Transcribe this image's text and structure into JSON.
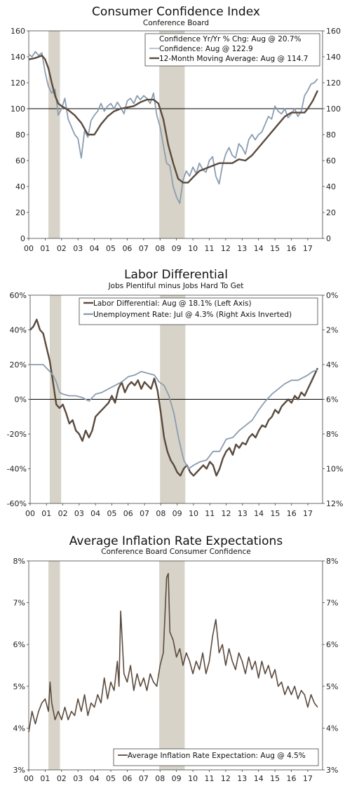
{
  "chart_data": [
    {
      "type": "line",
      "title": "Consumer Confidence Index",
      "subtitle": "Conference Board",
      "ylim": [
        0,
        160
      ],
      "y_ticks": [
        "0",
        "20",
        "40",
        "60",
        "80",
        "100",
        "120",
        "140",
        "160"
      ],
      "y2_ticks": [
        "0",
        "20",
        "40",
        "60",
        "80",
        "100",
        "120",
        "140",
        "160"
      ],
      "x_ticks": [
        "00",
        "01",
        "02",
        "03",
        "04",
        "05",
        "06",
        "07",
        "08",
        "09",
        "10",
        "11",
        "12",
        "13",
        "14",
        "15",
        "16",
        "17"
      ],
      "x_range": [
        2000,
        2017.9
      ],
      "reference_line": 100,
      "recessions": [
        [
          2001.2,
          2001.9
        ],
        [
          2007.95,
          2009.5
        ]
      ],
      "legend_placement": "top-right",
      "legend": [
        "Confidence Yr/Yr % Chg: Aug @ 20.7%",
        "Confidence: Aug @ 122.9",
        "12-Month Moving Average: Aug @ 114.7"
      ],
      "series": [
        {
          "name": "Confidence: Aug @ 122.9",
          "color": "#8a9db0",
          "x": [
            2000.0,
            2000.2,
            2000.4,
            2000.6,
            2000.8,
            2001.0,
            2001.2,
            2001.4,
            2001.6,
            2001.8,
            2002.0,
            2002.2,
            2002.4,
            2002.6,
            2002.8,
            2003.0,
            2003.2,
            2003.4,
            2003.6,
            2003.8,
            2004.0,
            2004.2,
            2004.4,
            2004.6,
            2004.8,
            2005.0,
            2005.2,
            2005.4,
            2005.6,
            2005.8,
            2006.0,
            2006.2,
            2006.4,
            2006.6,
            2006.8,
            2007.0,
            2007.2,
            2007.4,
            2007.6,
            2007.8,
            2008.0,
            2008.2,
            2008.4,
            2008.6,
            2008.8,
            2009.0,
            2009.2,
            2009.4,
            2009.6,
            2009.8,
            2010.0,
            2010.2,
            2010.4,
            2010.6,
            2010.8,
            2011.0,
            2011.2,
            2011.4,
            2011.6,
            2011.8,
            2012.0,
            2012.2,
            2012.4,
            2012.6,
            2012.8,
            2013.0,
            2013.2,
            2013.4,
            2013.6,
            2013.8,
            2014.0,
            2014.2,
            2014.4,
            2014.6,
            2014.8,
            2015.0,
            2015.2,
            2015.4,
            2015.6,
            2015.8,
            2016.0,
            2016.2,
            2016.4,
            2016.6,
            2016.8,
            2017.0,
            2017.2,
            2017.4,
            2017.6
          ],
          "values": [
            142,
            140,
            144,
            141,
            143,
            128,
            117,
            112,
            115,
            95,
            100,
            108,
            92,
            86,
            80,
            77,
            62,
            83,
            78,
            91,
            95,
            98,
            104,
            98,
            102,
            104,
            100,
            105,
            101,
            96,
            106,
            108,
            104,
            110,
            107,
            110,
            108,
            104,
            112,
            95,
            86,
            72,
            58,
            56,
            40,
            32,
            27,
            45,
            52,
            48,
            55,
            50,
            58,
            53,
            51,
            60,
            63,
            48,
            42,
            56,
            65,
            70,
            64,
            62,
            73,
            70,
            65,
            76,
            80,
            76,
            80,
            82,
            88,
            94,
            92,
            102,
            98,
            96,
            100,
            93,
            96,
            100,
            94,
            98,
            110,
            114,
            119,
            120,
            123
          ]
        },
        {
          "name": "12-Month Moving Average: Aug @ 114.7",
          "color": "#5a4a3e",
          "x": [
            2000.0,
            2000.4,
            2000.8,
            2001.0,
            2001.2,
            2001.4,
            2001.6,
            2001.8,
            2002.0,
            2002.4,
            2002.8,
            2003.2,
            2003.6,
            2004.0,
            2004.4,
            2004.8,
            2005.2,
            2005.6,
            2006.0,
            2006.4,
            2006.8,
            2007.2,
            2007.6,
            2007.9,
            2008.2,
            2008.5,
            2008.8,
            2009.1,
            2009.4,
            2009.7,
            2010.0,
            2010.4,
            2010.8,
            2011.2,
            2011.6,
            2012.0,
            2012.4,
            2012.8,
            2013.2,
            2013.6,
            2014.0,
            2014.4,
            2014.8,
            2015.2,
            2015.6,
            2016.0,
            2016.4,
            2016.8,
            2017.0,
            2017.3,
            2017.6
          ],
          "values": [
            138,
            139,
            141,
            138,
            131,
            120,
            110,
            104,
            102,
            99,
            95,
            89,
            80,
            80,
            88,
            94,
            98,
            100,
            101,
            102,
            105,
            107,
            107,
            104,
            92,
            72,
            58,
            46,
            43,
            43,
            47,
            52,
            54,
            56,
            58,
            58,
            58,
            61,
            60,
            64,
            70,
            76,
            82,
            88,
            94,
            97,
            97,
            97,
            100,
            106,
            114
          ]
        }
      ]
    },
    {
      "type": "line",
      "title": "Labor Differential",
      "subtitle": "Jobs Plentiful minus Jobs Hard To Get",
      "ylim": [
        -60,
        60
      ],
      "y_ticks": [
        "-60%",
        "-40%",
        "-20%",
        "0%",
        "20%",
        "40%",
        "60%"
      ],
      "y2_ticks": [
        "12%",
        "10%",
        "8%",
        "6%",
        "4%",
        "2%",
        "0%"
      ],
      "y2lim_inverted": [
        12,
        0
      ],
      "x_ticks": [
        "00",
        "01",
        "02",
        "03",
        "04",
        "05",
        "06",
        "07",
        "08",
        "09",
        "10",
        "11",
        "12",
        "13",
        "14",
        "15",
        "16",
        "17"
      ],
      "x_range": [
        2000,
        2017.9
      ],
      "reference_line": 0,
      "recessions": [
        [
          2001.2,
          2001.9
        ],
        [
          2007.95,
          2009.5
        ]
      ],
      "legend_placement": "top-right",
      "legend": [
        "Labor Differential: Aug @ 18.1% (Left Axis)",
        "Unemployment Rate: Jul @ 4.3% (Right Axis Inverted)"
      ],
      "series": [
        {
          "name": "Labor Differential: Aug @ 18.1% (Left Axis)",
          "axis": "left",
          "color": "#5a4a3e",
          "x": [
            2000.0,
            2000.2,
            2000.4,
            2000.6,
            2000.8,
            2001.0,
            2001.2,
            2001.4,
            2001.6,
            2001.8,
            2002.0,
            2002.2,
            2002.4,
            2002.6,
            2002.8,
            2003.0,
            2003.2,
            2003.4,
            2003.6,
            2003.8,
            2004.0,
            2004.2,
            2004.4,
            2004.6,
            2004.8,
            2005.0,
            2005.2,
            2005.4,
            2005.6,
            2005.8,
            2006.0,
            2006.2,
            2006.4,
            2006.6,
            2006.8,
            2007.0,
            2007.2,
            2007.4,
            2007.6,
            2007.8,
            2008.0,
            2008.2,
            2008.4,
            2008.6,
            2008.8,
            2009.0,
            2009.2,
            2009.4,
            2009.6,
            2009.8,
            2010.0,
            2010.2,
            2010.4,
            2010.6,
            2010.8,
            2011.0,
            2011.2,
            2011.4,
            2011.6,
            2011.8,
            2012.0,
            2012.2,
            2012.4,
            2012.6,
            2012.8,
            2013.0,
            2013.2,
            2013.4,
            2013.6,
            2013.8,
            2014.0,
            2014.2,
            2014.4,
            2014.6,
            2014.8,
            2015.0,
            2015.2,
            2015.4,
            2015.6,
            2015.8,
            2016.0,
            2016.2,
            2016.4,
            2016.6,
            2016.8,
            2017.0,
            2017.2,
            2017.4,
            2017.6
          ],
          "values": [
            40,
            42,
            46,
            40,
            38,
            30,
            22,
            10,
            -3,
            -5,
            -3,
            -8,
            -14,
            -12,
            -18,
            -20,
            -24,
            -18,
            -22,
            -18,
            -10,
            -8,
            -6,
            -4,
            -2,
            2,
            -2,
            6,
            10,
            4,
            8,
            10,
            8,
            11,
            6,
            10,
            8,
            6,
            12,
            5,
            -8,
            -22,
            -30,
            -35,
            -38,
            -42,
            -44,
            -40,
            -38,
            -42,
            -44,
            -42,
            -40,
            -38,
            -40,
            -36,
            -38,
            -44,
            -40,
            -34,
            -30,
            -28,
            -32,
            -26,
            -28,
            -25,
            -26,
            -22,
            -20,
            -22,
            -18,
            -15,
            -16,
            -12,
            -10,
            -6,
            -8,
            -4,
            -2,
            0,
            -2,
            2,
            0,
            4,
            2,
            6,
            10,
            14,
            18
          ]
        },
        {
          "name": "Unemployment Rate: Jul @ 4.3% (Right Axis Inverted)",
          "axis": "right",
          "color": "#8a9db0",
          "x": [
            2000.0,
            2000.4,
            2000.8,
            2001.0,
            2001.2,
            2001.4,
            2001.6,
            2001.8,
            2002.0,
            2002.4,
            2002.8,
            2003.2,
            2003.6,
            2004.0,
            2004.4,
            2004.8,
            2005.2,
            2005.6,
            2006.0,
            2006.4,
            2006.8,
            2007.2,
            2007.6,
            2007.9,
            2008.2,
            2008.5,
            2008.8,
            2009.1,
            2009.4,
            2009.7,
            2010.0,
            2010.4,
            2010.8,
            2011.2,
            2011.6,
            2012.0,
            2012.4,
            2012.8,
            2013.2,
            2013.6,
            2014.0,
            2014.4,
            2014.8,
            2015.2,
            2015.6,
            2016.0,
            2016.4,
            2016.8,
            2017.0,
            2017.3,
            2017.6
          ],
          "values": [
            4.0,
            4.0,
            4.0,
            4.2,
            4.4,
            4.6,
            5.0,
            5.6,
            5.7,
            5.8,
            5.8,
            5.9,
            6.1,
            5.7,
            5.6,
            5.4,
            5.2,
            5.0,
            4.7,
            4.6,
            4.4,
            4.5,
            4.6,
            5.0,
            5.2,
            5.8,
            6.8,
            8.3,
            9.5,
            10.0,
            9.8,
            9.6,
            9.5,
            9.0,
            9.0,
            8.3,
            8.2,
            7.8,
            7.5,
            7.2,
            6.6,
            6.1,
            5.7,
            5.4,
            5.1,
            4.9,
            4.9,
            4.7,
            4.6,
            4.4,
            4.3
          ]
        }
      ]
    },
    {
      "type": "line",
      "title": "Average Inflation Rate Expectations",
      "subtitle": "Conference Board Consumer Confidence",
      "ylim": [
        3,
        8
      ],
      "y_ticks": [
        "3%",
        "4%",
        "5%",
        "6%",
        "7%",
        "8%"
      ],
      "y2_ticks": [
        "3%",
        "4%",
        "5%",
        "6%",
        "7%",
        "8%"
      ],
      "x_ticks": [
        "00",
        "01",
        "02",
        "03",
        "04",
        "05",
        "06",
        "07",
        "08",
        "09",
        "10",
        "11",
        "12",
        "13",
        "14",
        "15",
        "16",
        "17"
      ],
      "x_range": [
        2000,
        2017.9
      ],
      "recessions": [
        [
          2001.2,
          2001.9
        ],
        [
          2007.95,
          2009.5
        ]
      ],
      "legend_placement": "bottom-right",
      "legend": [
        "Average Inflation Rate Expectation: Aug @ 4.5%"
      ],
      "series": [
        {
          "name": "Average Inflation Rate Expectation: Aug @ 4.5%",
          "color": "#5a4a3e",
          "x": [
            2000.0,
            2000.2,
            2000.4,
            2000.6,
            2000.8,
            2001.0,
            2001.2,
            2001.3,
            2001.4,
            2001.6,
            2001.8,
            2002.0,
            2002.2,
            2002.4,
            2002.6,
            2002.8,
            2003.0,
            2003.2,
            2003.4,
            2003.6,
            2003.8,
            2004.0,
            2004.2,
            2004.4,
            2004.6,
            2004.8,
            2005.0,
            2005.2,
            2005.4,
            2005.5,
            2005.6,
            2005.8,
            2006.0,
            2006.2,
            2006.4,
            2006.6,
            2006.8,
            2007.0,
            2007.2,
            2007.4,
            2007.6,
            2007.8,
            2008.0,
            2008.2,
            2008.4,
            2008.5,
            2008.6,
            2008.8,
            2009.0,
            2009.2,
            2009.4,
            2009.6,
            2009.8,
            2010.0,
            2010.2,
            2010.4,
            2010.6,
            2010.8,
            2011.0,
            2011.2,
            2011.4,
            2011.6,
            2011.8,
            2012.0,
            2012.2,
            2012.4,
            2012.6,
            2012.8,
            2013.0,
            2013.2,
            2013.4,
            2013.6,
            2013.8,
            2014.0,
            2014.2,
            2014.4,
            2014.6,
            2014.8,
            2015.0,
            2015.2,
            2015.4,
            2015.6,
            2015.8,
            2016.0,
            2016.2,
            2016.4,
            2016.6,
            2016.8,
            2017.0,
            2017.2,
            2017.4,
            2017.6
          ],
          "values": [
            3.9,
            4.4,
            4.1,
            4.4,
            4.6,
            4.7,
            4.4,
            5.1,
            4.6,
            4.2,
            4.4,
            4.2,
            4.5,
            4.2,
            4.4,
            4.3,
            4.7,
            4.4,
            4.8,
            4.3,
            4.6,
            4.5,
            4.8,
            4.6,
            5.2,
            4.7,
            5.1,
            4.9,
            5.6,
            5.0,
            6.8,
            5.3,
            5.1,
            5.5,
            4.9,
            5.3,
            5.0,
            5.2,
            4.9,
            5.3,
            5.1,
            5.0,
            5.5,
            5.8,
            7.6,
            7.7,
            6.3,
            6.1,
            5.7,
            5.9,
            5.5,
            5.8,
            5.6,
            5.3,
            5.6,
            5.4,
            5.8,
            5.3,
            5.6,
            6.2,
            6.6,
            5.8,
            6.0,
            5.5,
            5.9,
            5.6,
            5.4,
            5.8,
            5.6,
            5.3,
            5.7,
            5.4,
            5.6,
            5.2,
            5.6,
            5.3,
            5.5,
            5.2,
            5.4,
            5.0,
            5.1,
            4.8,
            5.0,
            4.8,
            5.0,
            4.7,
            4.9,
            4.8,
            4.5,
            4.8,
            4.6,
            4.5
          ]
        }
      ]
    }
  ]
}
